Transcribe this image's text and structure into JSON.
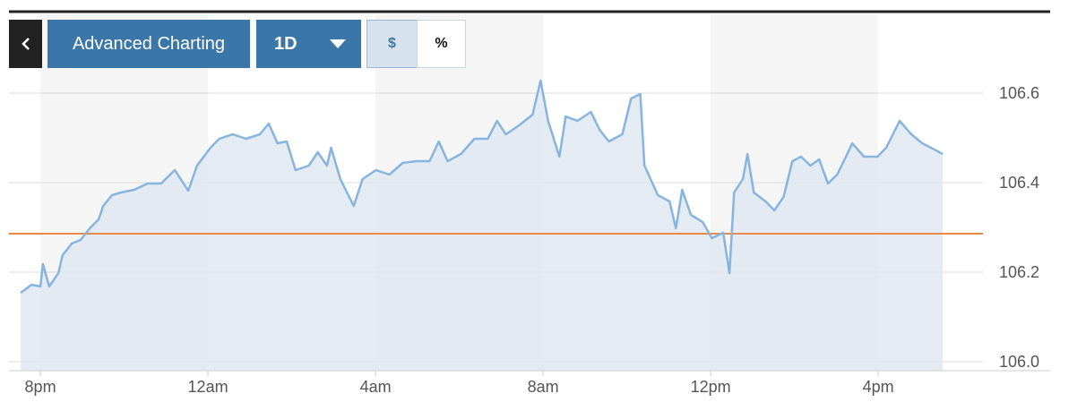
{
  "toolbar": {
    "title": "Advanced Charting",
    "range": "1D",
    "dollar": "$",
    "percent": "%"
  },
  "chart_data": {
    "type": "line",
    "x": [
      -0.47,
      -0.21,
      0,
      0.06,
      0.21,
      0.43,
      0.53,
      0.75,
      0.96,
      1.18,
      1.39,
      1.5,
      1.71,
      1.92,
      2.24,
      2.56,
      2.88,
      3.21,
      3.53,
      3.74,
      4.06,
      4.27,
      4.59,
      4.91,
      5.24,
      5.45,
      5.66,
      5.88,
      6.09,
      6.41,
      6.62,
      6.84,
      6.94,
      7.16,
      7.48,
      7.69,
      8.01,
      8.33,
      8.65,
      8.97,
      9.29,
      9.51,
      9.72,
      10.04,
      10.36,
      10.68,
      10.9,
      11.11,
      11.43,
      11.75,
      11.94,
      12.12,
      12.39,
      12.54,
      12.82,
      13.14,
      13.35,
      13.57,
      13.89,
      14.1,
      14.32,
      14.42,
      14.74,
      15.02,
      15.17,
      15.32,
      15.53,
      15.81,
      16.03,
      16.3,
      16.45,
      16.56,
      16.77,
      16.88,
      17.03,
      17.31,
      17.52,
      17.74,
      17.95,
      18.16,
      18.38,
      18.59,
      18.8,
      19.02,
      19.23,
      19.38,
      19.66,
      19.98,
      20.19,
      20.51,
      20.79,
      21.05,
      21.26,
      21.54
    ],
    "values": [
      106.154,
      106.172,
      106.168,
      106.218,
      106.168,
      106.198,
      106.238,
      106.264,
      106.272,
      106.298,
      106.318,
      106.348,
      106.372,
      106.378,
      106.384,
      106.398,
      106.398,
      106.428,
      106.382,
      106.438,
      106.478,
      106.498,
      106.508,
      106.498,
      106.508,
      106.532,
      106.488,
      106.492,
      106.428,
      106.438,
      106.468,
      106.438,
      106.478,
      106.408,
      106.348,
      106.408,
      106.428,
      106.418,
      106.444,
      106.448,
      106.448,
      106.492,
      106.448,
      106.464,
      106.498,
      106.498,
      106.538,
      106.508,
      106.528,
      106.552,
      106.628,
      106.538,
      106.458,
      106.548,
      106.538,
      106.558,
      106.518,
      106.492,
      106.508,
      106.588,
      106.598,
      106.438,
      106.372,
      106.358,
      106.298,
      106.384,
      106.328,
      106.312,
      106.276,
      106.288,
      106.198,
      106.378,
      106.408,
      106.464,
      106.378,
      106.358,
      106.338,
      106.368,
      106.448,
      106.458,
      106.438,
      106.452,
      106.398,
      106.418,
      106.458,
      106.488,
      106.458,
      106.458,
      106.478,
      106.538,
      106.508,
      106.488,
      106.478,
      106.464
    ],
    "color": "#88b4e0",
    "fill": "#dfe8f0",
    "reference_line": {
      "value": 106.286,
      "color": "#e8884a"
    },
    "xlim": [
      -0.75,
      22.5
    ],
    "xticks": [
      {
        "value": 0,
        "label": "8pm"
      },
      {
        "value": 4,
        "label": "12am"
      },
      {
        "value": 8,
        "label": "4am"
      },
      {
        "value": 12,
        "label": "8am"
      },
      {
        "value": 16,
        "label": "12pm"
      },
      {
        "value": 20,
        "label": "4pm"
      }
    ],
    "ylim": [
      105.98,
      106.64
    ],
    "yticks": [
      {
        "value": 106,
        "label": "106.0"
      },
      106.2,
      106.4,
      106.6
    ],
    "grid": true,
    "bands": true
  }
}
